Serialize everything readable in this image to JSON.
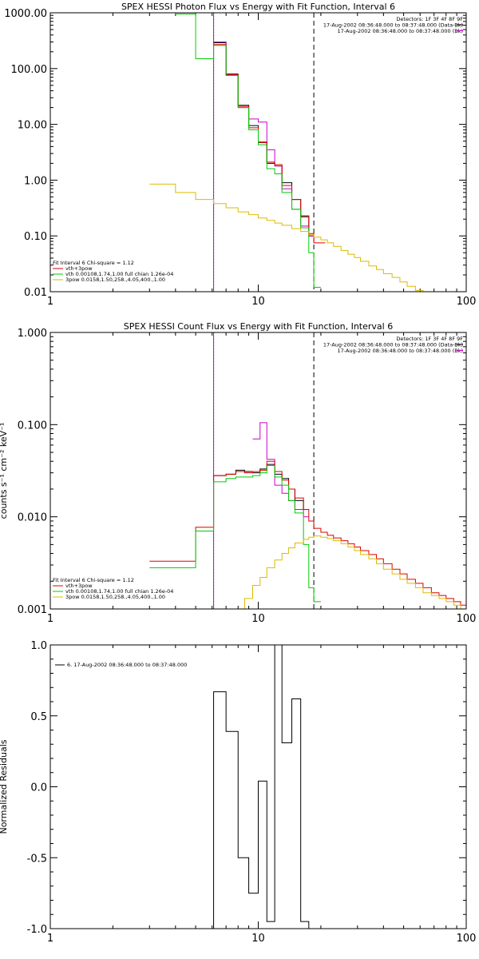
{
  "chart_data": [
    {
      "type": "line",
      "title": "SPEX HESSI Photon Flux vs Energy with Fit Function, Interval 6",
      "xscale": "log",
      "yscale": "log",
      "xlim": [
        1,
        100
      ],
      "ylim": [
        0.01,
        1000
      ],
      "xticks": [
        1,
        10,
        100
      ],
      "xtick_labels": [
        "1",
        "10",
        "100"
      ],
      "yticks": [
        0.01,
        0.1,
        1,
        10,
        100,
        1000
      ],
      "ytick_labels": [
        "0.01",
        "0.10",
        "1.00",
        "10.00",
        "100.00",
        "1000.00"
      ],
      "vlines": [
        {
          "x": 6.1,
          "style": "dotted",
          "color": "#000000"
        },
        {
          "x": 6.1,
          "style": "solid",
          "color": "#cc00cc"
        },
        {
          "x": 18.5,
          "style": "dashed",
          "color": "#000000"
        }
      ],
      "header_text": [
        "Detectors: 1F 3F 4F 8F 9F",
        "17-Aug-2002 08:36:48.000 to 08:37:48.000 (Data-Bk)",
        "17-Aug-2002 08:36:48.000 to 08:37:48.000 (Bk)"
      ],
      "legend_lines": [
        {
          "text": "Fit Interval  6    Chi-square = 1.12",
          "color": ""
        },
        {
          "text": "vth+3pow",
          "color": "#dd0000"
        },
        {
          "text": "vth 0.00108,1.74,1.00   full chian 1.26e-04",
          "color": "#00cc00"
        },
        {
          "text": "3pow 0.0158,1.50,258.,4.05,400.,1.00",
          "color": "#ddbb00"
        }
      ],
      "series": [
        {
          "color": "#000000",
          "edges": [
            6.1,
            7.0,
            8.0,
            9.0,
            10.0,
            11.0,
            12.0,
            13.0,
            14.5,
            16.0,
            17.5,
            18.5
          ],
          "values": [
            290,
            80,
            22,
            9.5,
            4.8,
            2.0,
            1.8,
            0.9,
            0.45,
            0.22,
            0.1
          ]
        },
        {
          "color": "#cc00cc",
          "edges": [
            6.1,
            7.0,
            8.0,
            9.0,
            10.0,
            11.0,
            12.0,
            13.0,
            14.5,
            16.0,
            17.5,
            18.5
          ],
          "values": [
            300,
            75,
            20,
            12.5,
            11,
            3.5,
            1.8,
            0.7,
            0.3,
            0.15,
            0.1
          ]
        },
        {
          "color": "#dd0000",
          "edges": [
            6.1,
            7.0,
            8.0,
            9.0,
            10.0,
            11.0,
            12.0,
            13.0,
            14.5,
            16.0,
            17.5,
            18.5,
            21.0
          ],
          "values": [
            270,
            78,
            21,
            8.7,
            4.7,
            2.1,
            1.9,
            0.8,
            0.45,
            0.23,
            0.11,
            0.075
          ]
        },
        {
          "color": "#00cc00",
          "edges": [
            3.0,
            4.0,
            5.0,
            6.1,
            7.0,
            8.0,
            9.0,
            10.0,
            11.0,
            12.0,
            13.0,
            14.5,
            16.0,
            17.5,
            18.5,
            20.0
          ],
          "values": [
            1000,
            950,
            150,
            260,
            75,
            20,
            8,
            4.3,
            1.6,
            1.3,
            0.6,
            0.3,
            0.14,
            0.05,
            0.012
          ]
        },
        {
          "color": "#ddbb00",
          "edges": [
            3.0,
            4.0,
            5.0,
            6.1,
            7.0,
            8.0,
            9.0,
            10.0,
            11.0,
            12.0,
            13.0,
            14.5,
            16.0,
            17.5,
            18.5,
            20.0,
            21.5,
            23.0,
            25.0,
            27.0,
            29.0,
            31.0,
            34.0,
            37.0,
            40.0,
            44.0,
            48.0,
            52.0,
            57.0,
            62.0,
            66.0
          ],
          "values": [
            0.85,
            0.6,
            0.45,
            0.38,
            0.32,
            0.27,
            0.24,
            0.21,
            0.19,
            0.17,
            0.155,
            0.135,
            0.12,
            0.105,
            0.095,
            0.085,
            0.075,
            0.065,
            0.055,
            0.047,
            0.041,
            0.035,
            0.029,
            0.025,
            0.021,
            0.018,
            0.015,
            0.0125,
            0.0105,
            0.009
          ]
        }
      ]
    },
    {
      "type": "line",
      "title": "SPEX HESSI Count Flux vs Energy with Fit Function, Interval 6",
      "ylabel": "counts s⁻¹ cm⁻² keV⁻¹",
      "xscale": "log",
      "yscale": "log",
      "xlim": [
        1,
        100
      ],
      "ylim": [
        0.001,
        1
      ],
      "xticks": [
        1,
        10,
        100
      ],
      "xtick_labels": [
        "1",
        "10",
        "100"
      ],
      "yticks": [
        0.001,
        0.01,
        0.1,
        1
      ],
      "ytick_labels": [
        "0.001",
        "0.010",
        "0.100",
        "1.000"
      ],
      "vlines": [
        {
          "x": 6.1,
          "style": "dotted",
          "color": "#000000"
        },
        {
          "x": 6.1,
          "style": "solid",
          "color": "#cc00cc"
        },
        {
          "x": 18.5,
          "style": "dashed",
          "color": "#000000"
        }
      ],
      "header_text": [
        "Detectors: 1F 3F 4F 8F 9F",
        "17-Aug-2002 08:36:48.000 to 08:37:48.000 (Data-Bk)",
        "17-Aug-2002 08:36:48.000 to 08:37:48.000 (Bk)"
      ],
      "legend_lines": [
        {
          "text": "Fit Interval  6    Chi-square = 1.12",
          "color": ""
        },
        {
          "text": "vth+3pow",
          "color": "#dd0000"
        },
        {
          "text": "vth 0.00108,1.74,1.00   full chian 1.26e-04",
          "color": "#00cc00"
        },
        {
          "text": "3pow 0.0158,1.50,258.,4.05,400.,1.00",
          "color": "#ddbb00"
        }
      ],
      "series": [
        {
          "color": "#000000",
          "edges": [
            6.1,
            7.0,
            7.8,
            8.6,
            9.4,
            10.2,
            11.0,
            12.0,
            13.0,
            14.0,
            15.0,
            16.5,
            17.5
          ],
          "values": [
            0.028,
            0.029,
            0.032,
            0.031,
            0.03,
            0.033,
            0.037,
            0.029,
            0.026,
            0.02,
            0.015,
            0.012
          ]
        },
        {
          "color": "#cc00cc",
          "edges": [
            9.4,
            10.2,
            11.0,
            12.0,
            13.0,
            14.0,
            15.0,
            16.5,
            17.5
          ],
          "values": [
            0.07,
            0.105,
            0.042,
            0.022,
            0.018,
            0.015,
            0.012,
            0.01
          ]
        },
        {
          "color": "#dd0000",
          "edges": [
            3.0,
            4.0,
            5.0,
            6.1,
            7.0,
            7.8,
            8.6,
            9.4,
            10.2,
            11.0,
            12.0,
            13.0,
            14.0,
            15.0,
            16.5,
            17.5,
            18.5,
            20.0,
            21.5,
            23.0,
            25.0,
            27.0,
            29.0,
            31.0,
            34.0,
            37.0,
            40.0,
            44.0,
            48.0,
            52.0,
            57.0,
            62.0,
            68.0,
            74.0,
            80.0,
            87.0,
            94.0,
            100.0
          ],
          "values": [
            0.0033,
            0.0033,
            0.0077,
            0.028,
            0.029,
            0.031,
            0.03,
            0.031,
            0.032,
            0.04,
            0.031,
            0.025,
            0.02,
            0.016,
            0.012,
            0.009,
            0.0075,
            0.0068,
            0.0063,
            0.0059,
            0.0055,
            0.0051,
            0.0047,
            0.0043,
            0.0039,
            0.0035,
            0.0031,
            0.0027,
            0.0024,
            0.0021,
            0.0019,
            0.0017,
            0.0015,
            0.0014,
            0.0013,
            0.0012,
            0.0011
          ]
        },
        {
          "color": "#00cc00",
          "edges": [
            3.0,
            4.0,
            5.0,
            6.1,
            7.0,
            7.8,
            8.6,
            9.4,
            10.2,
            11.0,
            12.0,
            13.0,
            14.0,
            15.0,
            16.5,
            17.5,
            18.5,
            20.0
          ],
          "values": [
            0.0028,
            0.0028,
            0.007,
            0.024,
            0.026,
            0.027,
            0.027,
            0.028,
            0.03,
            0.036,
            0.027,
            0.022,
            0.015,
            0.011,
            0.005,
            0.0017,
            0.0012
          ]
        },
        {
          "color": "#ddbb00",
          "edges": [
            8.0,
            8.6,
            9.4,
            10.2,
            11.0,
            12.0,
            13.0,
            14.0,
            15.0,
            16.5,
            17.5,
            18.5,
            20.0,
            21.5,
            23.0,
            25.0,
            27.0,
            29.0,
            31.0,
            34.0,
            37.0,
            40.0,
            44.0,
            48.0,
            52.0,
            57.0,
            62.0,
            68.0,
            74.0,
            80.0,
            87.0,
            94.0,
            100.0
          ],
          "values": [
            0.001,
            0.0013,
            0.0018,
            0.0022,
            0.0028,
            0.0034,
            0.004,
            0.0046,
            0.0052,
            0.0057,
            0.006,
            0.0062,
            0.006,
            0.0058,
            0.0055,
            0.0051,
            0.0047,
            0.0043,
            0.0039,
            0.0035,
            0.0031,
            0.0027,
            0.0024,
            0.0021,
            0.0019,
            0.0017,
            0.0015,
            0.0014,
            0.0013,
            0.0012,
            0.0011,
            0.001
          ]
        }
      ]
    },
    {
      "type": "line",
      "title": "",
      "ylabel": "Normalized Residuals",
      "xscale": "log",
      "yscale": "linear",
      "xlim": [
        1,
        100
      ],
      "ylim": [
        -1.0,
        1.0
      ],
      "xticks": [
        1,
        10,
        100
      ],
      "xtick_labels": [
        "1",
        "10",
        "100"
      ],
      "yticks": [
        -1.0,
        -0.5,
        0.0,
        0.5,
        1.0
      ],
      "ytick_labels": [
        "-1.0",
        "-0.5",
        "0.0",
        "0.5",
        "1.0"
      ],
      "vlines": [],
      "header_text": [],
      "legend_lines": [
        {
          "text": "6. 17-Aug-2002 08:36:48.000 to 08:37:48.000",
          "color": "#000000",
          "marker": true
        }
      ],
      "series": [
        {
          "color": "#000000",
          "edges": [
            6.1,
            7.0,
            8.0,
            9.0,
            10.0,
            11.0,
            12.0,
            13.0,
            14.5,
            16.0,
            17.5,
            19.0
          ],
          "values": [
            0.67,
            0.39,
            -0.5,
            -0.75,
            0.04,
            -0.95,
            1.0,
            0.31,
            0.62,
            -0.95,
            -1.0
          ],
          "start_value": -1.0
        }
      ]
    }
  ]
}
